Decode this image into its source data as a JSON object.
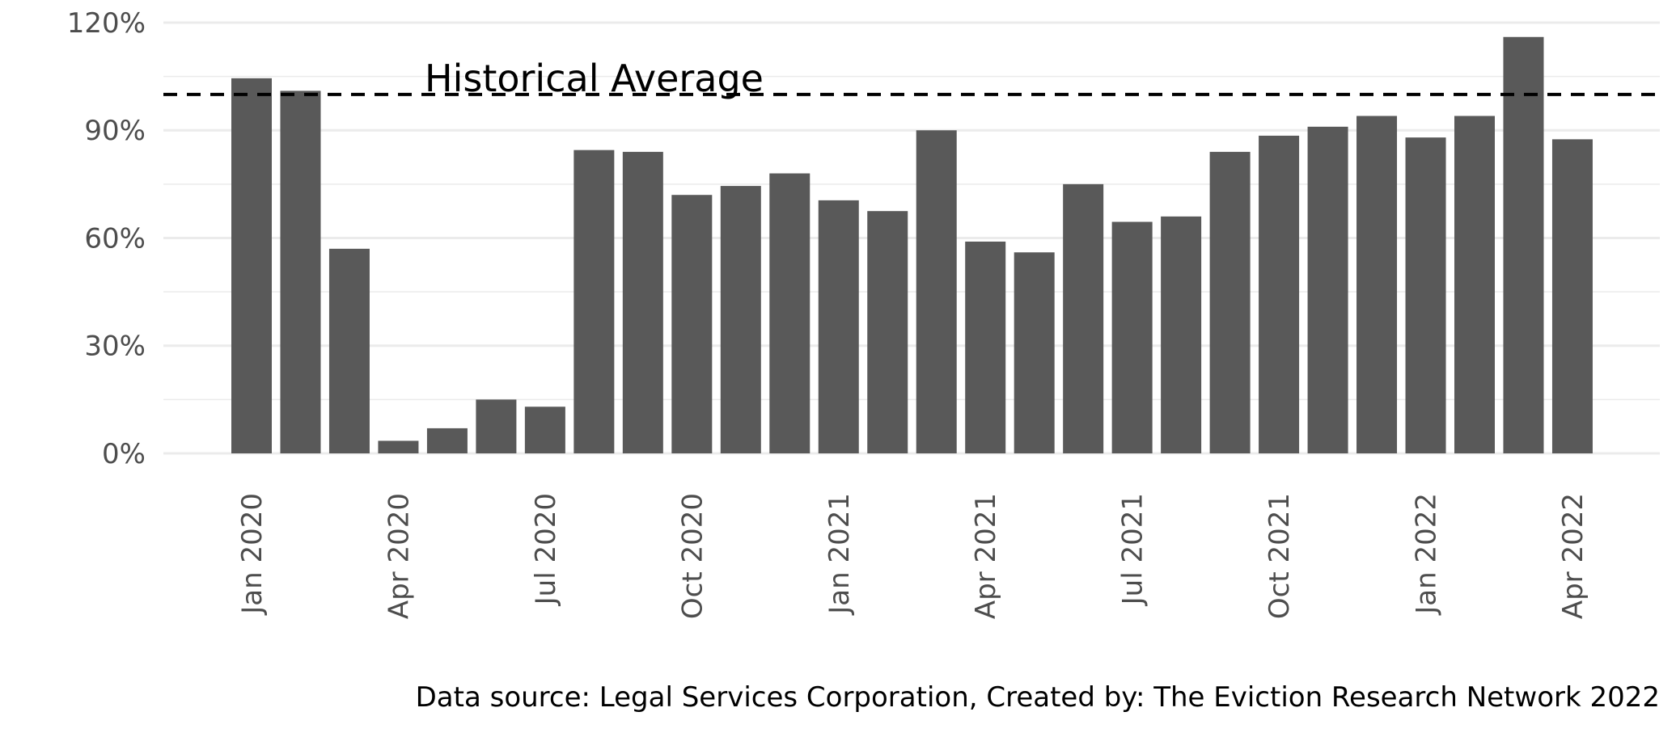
{
  "chart_data": {
    "type": "bar",
    "categories": [
      "Jan 2020",
      "Feb 2020",
      "Mar 2020",
      "Apr 2020",
      "May 2020",
      "Jun 2020",
      "Jul 2020",
      "Aug 2020",
      "Sep 2020",
      "Oct 2020",
      "Nov 2020",
      "Dec 2020",
      "Jan 2021",
      "Feb 2021",
      "Mar 2021",
      "Apr 2021",
      "May 2021",
      "Jun 2021",
      "Jul 2021",
      "Aug 2021",
      "Sep 2021",
      "Oct 2021",
      "Nov 2021",
      "Dec 2021",
      "Jan 2022",
      "Feb 2022",
      "Mar 2022",
      "Apr 2022"
    ],
    "values": [
      104.5,
      101,
      57,
      3.5,
      7,
      15,
      13,
      84.5,
      84,
      72,
      74.5,
      78,
      70.5,
      67.5,
      90,
      59,
      56,
      75,
      64.5,
      66,
      84,
      88.5,
      91,
      94,
      88,
      94,
      116,
      87.5
    ],
    "x_tick_labels": [
      "Jan 2020",
      "Apr 2020",
      "Jul 2020",
      "Oct 2020",
      "Jan 2021",
      "Apr 2021",
      "Jul 2021",
      "Oct 2021",
      "Jan 2022",
      "Apr 2022"
    ],
    "y_ticks": [
      0,
      30,
      60,
      90,
      120
    ],
    "y_tick_labels": [
      "0%",
      "30%",
      "60%",
      "90%",
      "120%"
    ],
    "ylim": [
      0,
      121
    ],
    "reference_line": {
      "value": 100,
      "label": "Historical Average",
      "style": "dashed"
    },
    "grid": true,
    "bar_color": "#595959",
    "title": "",
    "xlabel": "",
    "ylabel": ""
  },
  "caption": "Data source: Legal Services Corporation, Created by: The Eviction Research Network 2022"
}
